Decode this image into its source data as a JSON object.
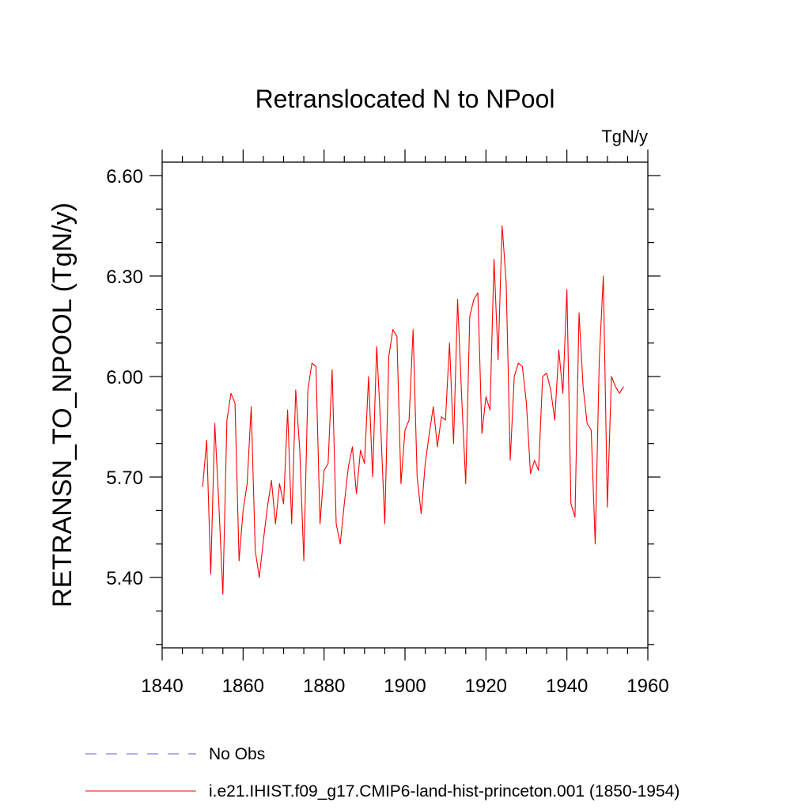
{
  "chart_data": {
    "type": "line",
    "title": "Retranslocated N to NPool",
    "units_label": "TgN/y",
    "ylabel": "RETRANSN_TO_NPOOL  (TgN/y)",
    "xlabel": "",
    "xlim": [
      1840,
      1960
    ],
    "ylim": [
      5.19,
      6.64
    ],
    "x_major_ticks": [
      1840,
      1860,
      1880,
      1900,
      1920,
      1940,
      1960
    ],
    "x_minor_step": 5,
    "y_major_ticks": [
      5.4,
      5.7,
      6.0,
      6.3,
      6.6
    ],
    "y_tick_labels": [
      "5.40",
      "5.70",
      "6.00",
      "6.30",
      "6.60"
    ],
    "y_minor_step": 0.1,
    "x_tick_labels": [
      "1840",
      "1860",
      "1880",
      "1900",
      "1920",
      "1940",
      "1960"
    ],
    "grid": false,
    "legend_placement": "bottom-left",
    "series": [
      {
        "name": "No Obs",
        "color": "#6a5acd",
        "dash": "dashed",
        "x": [],
        "values": []
      },
      {
        "name": "i.e21.IHIST.f09_g17.CMIP6-land-hist-princeton.001 (1850-1954)",
        "color": "#ff0000",
        "dash": "solid",
        "x": [
          1850,
          1851,
          1852,
          1853,
          1854,
          1855,
          1856,
          1857,
          1858,
          1859,
          1860,
          1861,
          1862,
          1863,
          1864,
          1865,
          1866,
          1867,
          1868,
          1869,
          1870,
          1871,
          1872,
          1873,
          1874,
          1875,
          1876,
          1877,
          1878,
          1879,
          1880,
          1881,
          1882,
          1883,
          1884,
          1885,
          1886,
          1887,
          1888,
          1889,
          1890,
          1891,
          1892,
          1893,
          1894,
          1895,
          1896,
          1897,
          1898,
          1899,
          1900,
          1901,
          1902,
          1903,
          1904,
          1905,
          1906,
          1907,
          1908,
          1909,
          1910,
          1911,
          1912,
          1913,
          1914,
          1915,
          1916,
          1917,
          1918,
          1919,
          1920,
          1921,
          1922,
          1923,
          1924,
          1925,
          1926,
          1927,
          1928,
          1929,
          1930,
          1931,
          1932,
          1933,
          1934,
          1935,
          1936,
          1937,
          1938,
          1939,
          1940,
          1941,
          1942,
          1943,
          1944,
          1945,
          1946,
          1947,
          1948,
          1949,
          1950,
          1951,
          1952,
          1953,
          1954
        ],
        "values": [
          5.67,
          5.81,
          5.41,
          5.86,
          5.62,
          5.35,
          5.87,
          5.95,
          5.92,
          5.45,
          5.6,
          5.68,
          5.91,
          5.48,
          5.4,
          5.51,
          5.61,
          5.69,
          5.56,
          5.68,
          5.62,
          5.9,
          5.56,
          5.96,
          5.78,
          5.45,
          5.96,
          6.04,
          6.03,
          5.56,
          5.72,
          5.74,
          6.02,
          5.56,
          5.5,
          5.62,
          5.73,
          5.79,
          5.65,
          5.78,
          5.74,
          6.0,
          5.7,
          6.09,
          5.85,
          5.56,
          6.06,
          6.14,
          6.12,
          5.68,
          5.84,
          5.87,
          6.14,
          5.7,
          5.59,
          5.74,
          5.83,
          5.91,
          5.79,
          5.88,
          5.87,
          6.1,
          5.8,
          6.23,
          5.94,
          5.68,
          6.18,
          6.23,
          6.25,
          5.83,
          5.94,
          5.9,
          6.35,
          6.05,
          6.45,
          6.28,
          5.75,
          6.0,
          6.04,
          6.03,
          5.92,
          5.71,
          5.75,
          5.72,
          6.0,
          6.01,
          5.96,
          5.87,
          6.08,
          5.95,
          6.26,
          5.62,
          5.58,
          6.19,
          5.97,
          5.86,
          5.84,
          5.5,
          6.05,
          6.3,
          5.61,
          6.0,
          5.97,
          5.95,
          5.97
        ]
      }
    ]
  }
}
